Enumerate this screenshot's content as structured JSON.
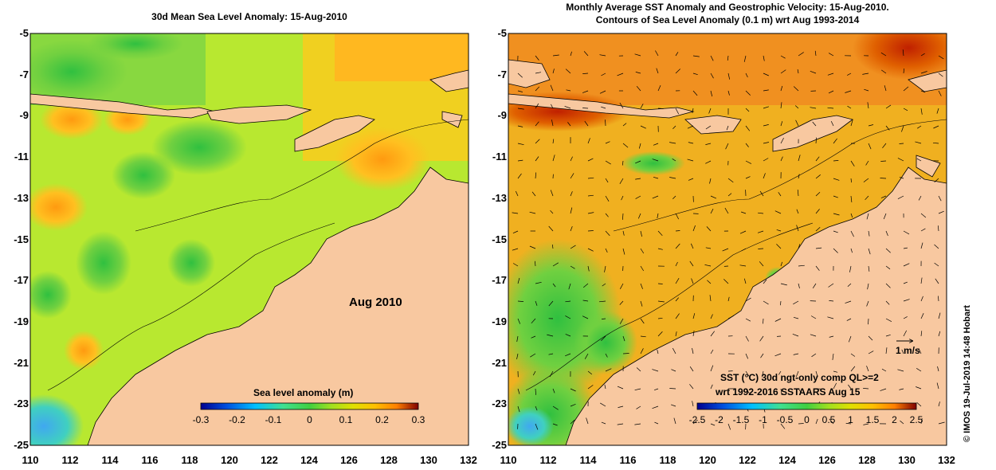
{
  "left_map": {
    "title": "30d Mean Sea Level Anomaly: 15-Aug-2010",
    "month_label": "Aug 2010",
    "colorbar": {
      "title": "Sea level anomaly (m)",
      "ticks": [
        "-0.3",
        "-0.2",
        "-0.1",
        "0",
        "0.1",
        "0.2",
        "0.3"
      ]
    }
  },
  "right_map": {
    "title_line1": "Monthly Average SST Anomaly  and Geostrophic Velocity: 15-Aug-2010.",
    "title_line2": "Contours of Sea Level Anomaly (0.1 m) wrt Aug 1993-2014",
    "scale_label": "1 m/s",
    "legend_line1": "SST (°C) 30d ngt-only comp QL>=2",
    "legend_line2": "wrt 1992-2016 SSTAARS Aug 15",
    "colorbar": {
      "ticks": [
        "-2.5",
        "-2",
        "-1.5",
        "-1",
        "-0.5",
        "0",
        "0.5",
        "1",
        "1.5",
        "2",
        "2.5"
      ]
    }
  },
  "axes": {
    "lat_ticks": [
      "-5",
      "-7",
      "-9",
      "-11",
      "-13",
      "-15",
      "-17",
      "-19",
      "-21",
      "-23",
      "-25"
    ],
    "lon_ticks": [
      "110",
      "112",
      "114",
      "116",
      "118",
      "120",
      "122",
      "124",
      "126",
      "128",
      "130",
      "132"
    ]
  },
  "credit": "© IMOS 19-Jul-2019 14:48 Hobart",
  "colors": {
    "land": "#f8c8a0",
    "sla_scale": [
      "#000090",
      "#0050e0",
      "#00c0ff",
      "#40e090",
      "#40d040",
      "#a0e020",
      "#e0e000",
      "#ffc000",
      "#ff8000",
      "#e03000",
      "#800000"
    ]
  }
}
